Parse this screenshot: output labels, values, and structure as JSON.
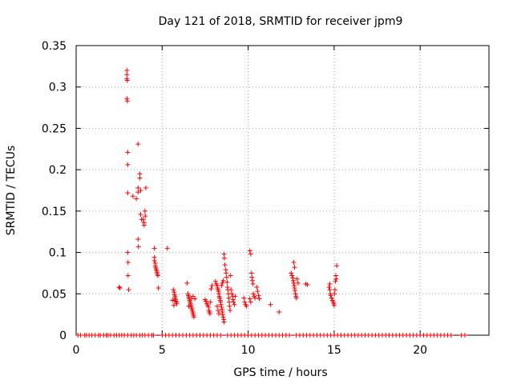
{
  "chart_data": {
    "type": "scatter",
    "title": "Day 121 of 2018, SRMTID for receiver jpm9",
    "xlabel": "GPS time / hours",
    "ylabel": "SRMTID / TECUs",
    "xlim": [
      0,
      24
    ],
    "ylim": [
      0,
      0.35
    ],
    "xticks": [
      0,
      5,
      10,
      15,
      20
    ],
    "xtick_labels": [
      "0",
      "5",
      "10",
      "15",
      "20"
    ],
    "yticks": [
      0,
      0.05,
      0.1,
      0.15,
      0.2,
      0.25,
      0.3,
      0.35
    ],
    "ytick_labels": [
      "0",
      "0.05",
      "0.1",
      "0.15",
      "0.2",
      "0.25",
      "0.3",
      "0.35"
    ],
    "grid": true,
    "marker": "+",
    "color": "#ff0000",
    "series": [
      {
        "name": "SRMTID",
        "points": [
          [
            2.5,
            0.058
          ],
          [
            2.55,
            0.057
          ],
          [
            2.95,
            0.32
          ],
          [
            2.95,
            0.315
          ],
          [
            2.95,
            0.31
          ],
          [
            2.97,
            0.308
          ],
          [
            2.95,
            0.286
          ],
          [
            2.98,
            0.283
          ],
          [
            3.0,
            0.221
          ],
          [
            3.0,
            0.206
          ],
          [
            3.0,
            0.172
          ],
          [
            3.0,
            0.1
          ],
          [
            3.02,
            0.088
          ],
          [
            3.02,
            0.072
          ],
          [
            3.05,
            0.055
          ],
          [
            3.3,
            0.168
          ],
          [
            3.5,
            0.165
          ],
          [
            3.6,
            0.231
          ],
          [
            3.6,
            0.178
          ],
          [
            3.6,
            0.173
          ],
          [
            3.6,
            0.116
          ],
          [
            3.62,
            0.107
          ],
          [
            3.7,
            0.195
          ],
          [
            3.7,
            0.19
          ],
          [
            3.75,
            0.175
          ],
          [
            3.75,
            0.146
          ],
          [
            3.8,
            0.14
          ],
          [
            3.9,
            0.14
          ],
          [
            3.95,
            0.136
          ],
          [
            3.95,
            0.133
          ],
          [
            4.0,
            0.15
          ],
          [
            4.02,
            0.144
          ],
          [
            4.05,
            0.178
          ],
          [
            4.55,
            0.105
          ],
          [
            4.55,
            0.094
          ],
          [
            4.55,
            0.09
          ],
          [
            4.6,
            0.087
          ],
          [
            4.6,
            0.084
          ],
          [
            4.62,
            0.082
          ],
          [
            4.65,
            0.08
          ],
          [
            4.68,
            0.078
          ],
          [
            4.7,
            0.076
          ],
          [
            4.72,
            0.074
          ],
          [
            4.75,
            0.072
          ],
          [
            4.78,
            0.057
          ],
          [
            5.3,
            0.105
          ],
          [
            5.65,
            0.055
          ],
          [
            5.7,
            0.052
          ],
          [
            5.72,
            0.049
          ],
          [
            5.75,
            0.047
          ],
          [
            5.75,
            0.045
          ],
          [
            5.78,
            0.043
          ],
          [
            5.8,
            0.041
          ],
          [
            5.82,
            0.04
          ],
          [
            5.85,
            0.038
          ],
          [
            5.6,
            0.042
          ],
          [
            5.68,
            0.036
          ],
          [
            6.45,
            0.063
          ],
          [
            6.5,
            0.05
          ],
          [
            6.52,
            0.048
          ],
          [
            6.55,
            0.046
          ],
          [
            6.58,
            0.044
          ],
          [
            6.6,
            0.042
          ],
          [
            6.62,
            0.04
          ],
          [
            6.65,
            0.038
          ],
          [
            6.68,
            0.036
          ],
          [
            6.7,
            0.034
          ],
          [
            6.72,
            0.032
          ],
          [
            6.75,
            0.03
          ],
          [
            6.78,
            0.028
          ],
          [
            6.8,
            0.026
          ],
          [
            6.82,
            0.024
          ],
          [
            6.85,
            0.022
          ],
          [
            6.55,
            0.035
          ],
          [
            6.7,
            0.044
          ],
          [
            6.8,
            0.047
          ],
          [
            6.9,
            0.044
          ],
          [
            7.5,
            0.043
          ],
          [
            7.55,
            0.041
          ],
          [
            7.6,
            0.038
          ],
          [
            7.65,
            0.036
          ],
          [
            7.7,
            0.034
          ],
          [
            7.72,
            0.03
          ],
          [
            7.75,
            0.028
          ],
          [
            7.78,
            0.026
          ],
          [
            7.8,
            0.04
          ],
          [
            7.85,
            0.056
          ],
          [
            7.9,
            0.06
          ],
          [
            8.1,
            0.065
          ],
          [
            8.15,
            0.062
          ],
          [
            8.2,
            0.06
          ],
          [
            8.22,
            0.057
          ],
          [
            8.25,
            0.055
          ],
          [
            8.28,
            0.053
          ],
          [
            8.3,
            0.05
          ],
          [
            8.32,
            0.047
          ],
          [
            8.35,
            0.045
          ],
          [
            8.38,
            0.042
          ],
          [
            8.4,
            0.04
          ],
          [
            8.42,
            0.037
          ],
          [
            8.45,
            0.034
          ],
          [
            8.48,
            0.031
          ],
          [
            8.5,
            0.028
          ],
          [
            8.52,
            0.025
          ],
          [
            8.55,
            0.022
          ],
          [
            8.58,
            0.019
          ],
          [
            8.6,
            0.016
          ],
          [
            8.2,
            0.035
          ],
          [
            8.25,
            0.03
          ],
          [
            8.3,
            0.026
          ],
          [
            8.45,
            0.06
          ],
          [
            8.5,
            0.063
          ],
          [
            8.55,
            0.066
          ],
          [
            8.6,
            0.098
          ],
          [
            8.62,
            0.093
          ],
          [
            8.65,
            0.085
          ],
          [
            8.7,
            0.079
          ],
          [
            8.72,
            0.075
          ],
          [
            8.75,
            0.07
          ],
          [
            8.78,
            0.064
          ],
          [
            8.8,
            0.058
          ],
          [
            8.82,
            0.055
          ],
          [
            8.85,
            0.05
          ],
          [
            8.88,
            0.045
          ],
          [
            8.9,
            0.04
          ],
          [
            8.92,
            0.035
          ],
          [
            8.95,
            0.03
          ],
          [
            8.98,
            0.072
          ],
          [
            9.0,
            0.055
          ],
          [
            9.05,
            0.05
          ],
          [
            9.1,
            0.047
          ],
          [
            9.12,
            0.043
          ],
          [
            9.15,
            0.04
          ],
          [
            9.2,
            0.037
          ],
          [
            9.25,
            0.047
          ],
          [
            9.75,
            0.045
          ],
          [
            9.8,
            0.04
          ],
          [
            9.85,
            0.037
          ],
          [
            9.9,
            0.035
          ],
          [
            10.1,
            0.102
          ],
          [
            10.15,
            0.098
          ],
          [
            10.2,
            0.075
          ],
          [
            10.22,
            0.07
          ],
          [
            10.25,
            0.066
          ],
          [
            10.28,
            0.062
          ],
          [
            10.3,
            0.05
          ],
          [
            10.35,
            0.047
          ],
          [
            10.4,
            0.045
          ],
          [
            10.1,
            0.044
          ],
          [
            10.15,
            0.04
          ],
          [
            10.5,
            0.058
          ],
          [
            10.55,
            0.053
          ],
          [
            10.6,
            0.048
          ],
          [
            10.65,
            0.044
          ],
          [
            11.3,
            0.037
          ],
          [
            11.8,
            0.028
          ],
          [
            12.5,
            0.075
          ],
          [
            12.55,
            0.072
          ],
          [
            12.6,
            0.069
          ],
          [
            12.62,
            0.066
          ],
          [
            12.65,
            0.063
          ],
          [
            12.68,
            0.06
          ],
          [
            12.7,
            0.057
          ],
          [
            12.72,
            0.054
          ],
          [
            12.75,
            0.05
          ],
          [
            12.78,
            0.047
          ],
          [
            12.8,
            0.045
          ],
          [
            12.65,
            0.088
          ],
          [
            12.7,
            0.082
          ],
          [
            12.85,
            0.068
          ],
          [
            12.9,
            0.063
          ],
          [
            13.35,
            0.062
          ],
          [
            13.45,
            0.061
          ],
          [
            14.7,
            0.058
          ],
          [
            14.75,
            0.055
          ],
          [
            14.78,
            0.05
          ],
          [
            14.8,
            0.048
          ],
          [
            14.85,
            0.045
          ],
          [
            14.9,
            0.042
          ],
          [
            14.95,
            0.04
          ],
          [
            14.98,
            0.038
          ],
          [
            15.0,
            0.036
          ],
          [
            15.02,
            0.05
          ],
          [
            15.05,
            0.055
          ],
          [
            15.07,
            0.065
          ],
          [
            15.1,
            0.072
          ],
          [
            15.12,
            0.068
          ],
          [
            15.15,
            0.084
          ],
          [
            14.75,
            0.062
          ]
        ],
        "baseline_zero_x": [
          0.1,
          0.25,
          0.5,
          0.6,
          0.75,
          0.9,
          1.1,
          1.3,
          1.4,
          1.6,
          1.75,
          1.85,
          2.0,
          2.2,
          2.35,
          2.5,
          2.65,
          2.8,
          3.0,
          3.2,
          3.35,
          3.5,
          3.7,
          3.85,
          4.0,
          4.2,
          4.4,
          4.5,
          5.0,
          5.2,
          5.4,
          5.6,
          5.8,
          6.0,
          6.2,
          6.4,
          6.6,
          6.8,
          7.0,
          7.2,
          7.4,
          7.6,
          7.8,
          8.0,
          8.2,
          8.4,
          8.8,
          9.0,
          9.2,
          9.4,
          9.6,
          9.8,
          10.0,
          10.2,
          10.4,
          10.6,
          10.8,
          11.0,
          11.2,
          11.4,
          11.6,
          11.8,
          12.0,
          12.2,
          12.4,
          12.8,
          13.0,
          13.2,
          13.4,
          13.6,
          13.8,
          14.0,
          14.2,
          14.4,
          14.6,
          14.8,
          15.0,
          15.2,
          15.4,
          15.6,
          15.8,
          16.0,
          16.2,
          16.4,
          16.6,
          16.8,
          17.0,
          17.2,
          17.4,
          17.6,
          17.8,
          18.0,
          18.2,
          18.4,
          18.6,
          18.8,
          19.0,
          19.2,
          19.4,
          19.6,
          19.8,
          20.0,
          20.2,
          20.4,
          20.6,
          20.8,
          21.0,
          21.2,
          21.4,
          21.6,
          21.8,
          22.4,
          22.6
        ]
      }
    ]
  }
}
